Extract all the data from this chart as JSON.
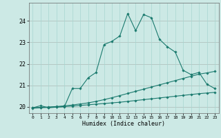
{
  "xlabel": "Humidex (Indice chaleur)",
  "x_ticks": [
    0,
    1,
    2,
    3,
    4,
    5,
    6,
    7,
    8,
    9,
    10,
    11,
    12,
    13,
    14,
    15,
    16,
    17,
    18,
    19,
    20,
    21,
    22,
    23
  ],
  "xlim": [
    -0.5,
    23.5
  ],
  "ylim": [
    19.7,
    24.85
  ],
  "yticks": [
    20,
    21,
    22,
    23,
    24
  ],
  "bg_color": "#cce9e5",
  "line_color": "#1a7a6e",
  "grid_color": "#a8d5d0",
  "red_line_color": "#d4a0a0",
  "curve1_x": [
    0,
    1,
    2,
    3,
    4,
    5,
    6,
    7,
    8,
    9,
    10,
    11,
    12,
    13,
    14,
    15,
    16,
    17,
    18,
    19,
    20,
    21,
    22,
    23
  ],
  "curve1_y": [
    19.95,
    20.05,
    19.95,
    19.98,
    20.0,
    20.85,
    20.85,
    21.35,
    21.6,
    22.9,
    23.05,
    23.3,
    24.35,
    23.55,
    24.3,
    24.15,
    23.15,
    22.8,
    22.55,
    21.7,
    21.5,
    21.6,
    21.05,
    20.85
  ],
  "curve2_x": [
    0,
    1,
    2,
    3,
    4,
    5,
    6,
    7,
    8,
    9,
    10,
    11,
    12,
    13,
    14,
    15,
    16,
    17,
    18,
    19,
    20,
    21,
    22,
    23
  ],
  "curve2_y": [
    19.95,
    19.97,
    19.99,
    20.01,
    20.04,
    20.08,
    20.13,
    20.18,
    20.25,
    20.33,
    20.42,
    20.52,
    20.62,
    20.72,
    20.82,
    20.92,
    21.02,
    21.12,
    21.22,
    21.32,
    21.42,
    21.52,
    21.58,
    21.65
  ],
  "curve3_x": [
    0,
    1,
    2,
    3,
    4,
    5,
    6,
    7,
    8,
    9,
    10,
    11,
    12,
    13,
    14,
    15,
    16,
    17,
    18,
    19,
    20,
    21,
    22,
    23
  ],
  "curve3_y": [
    19.93,
    19.95,
    19.97,
    19.99,
    20.01,
    20.03,
    20.06,
    20.09,
    20.12,
    20.15,
    20.18,
    20.21,
    20.25,
    20.29,
    20.33,
    20.37,
    20.41,
    20.45,
    20.49,
    20.53,
    20.57,
    20.61,
    20.64,
    20.67
  ]
}
